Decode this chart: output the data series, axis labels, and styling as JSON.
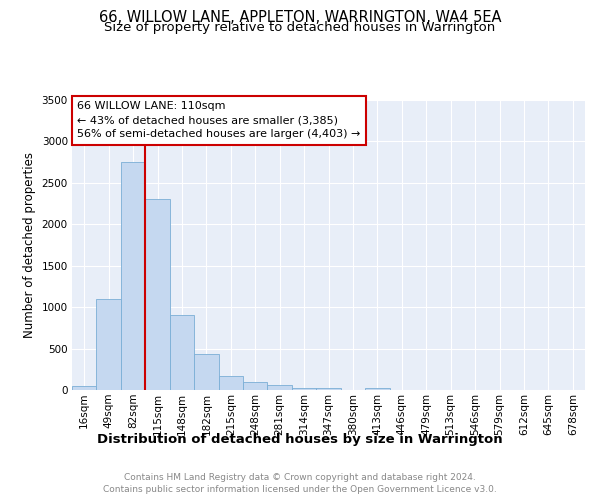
{
  "title": "66, WILLOW LANE, APPLETON, WARRINGTON, WA4 5EA",
  "subtitle": "Size of property relative to detached houses in Warrington",
  "xlabel": "Distribution of detached houses by size in Warrington",
  "ylabel": "Number of detached properties",
  "bar_labels": [
    "16sqm",
    "49sqm",
    "82sqm",
    "115sqm",
    "148sqm",
    "182sqm",
    "215sqm",
    "248sqm",
    "281sqm",
    "314sqm",
    "347sqm",
    "380sqm",
    "413sqm",
    "446sqm",
    "479sqm",
    "513sqm",
    "546sqm",
    "579sqm",
    "612sqm",
    "645sqm",
    "678sqm"
  ],
  "bar_values": [
    50,
    1100,
    2750,
    2300,
    900,
    430,
    175,
    100,
    60,
    30,
    30,
    0,
    25,
    0,
    0,
    0,
    0,
    0,
    0,
    0,
    0
  ],
  "bar_color": "#c5d8f0",
  "bar_edge_color": "#7aaed6",
  "bg_color": "#e8eef8",
  "grid_color": "#ffffff",
  "vline_x_index": 3,
  "vline_color": "#cc0000",
  "annotation_title": "66 WILLOW LANE: 110sqm",
  "annotation_line1": "← 43% of detached houses are smaller (3,385)",
  "annotation_line2": "56% of semi-detached houses are larger (4,403) →",
  "annotation_box_color": "#cc0000",
  "ylim": [
    0,
    3500
  ],
  "yticks": [
    0,
    500,
    1000,
    1500,
    2000,
    2500,
    3000,
    3500
  ],
  "footer_line1": "Contains HM Land Registry data © Crown copyright and database right 2024.",
  "footer_line2": "Contains public sector information licensed under the Open Government Licence v3.0.",
  "title_fontsize": 10.5,
  "subtitle_fontsize": 9.5,
  "tick_fontsize": 7.5,
  "ylabel_fontsize": 8.5,
  "xlabel_fontsize": 9.5,
  "footer_fontsize": 6.5,
  "annotation_fontsize": 8.0
}
